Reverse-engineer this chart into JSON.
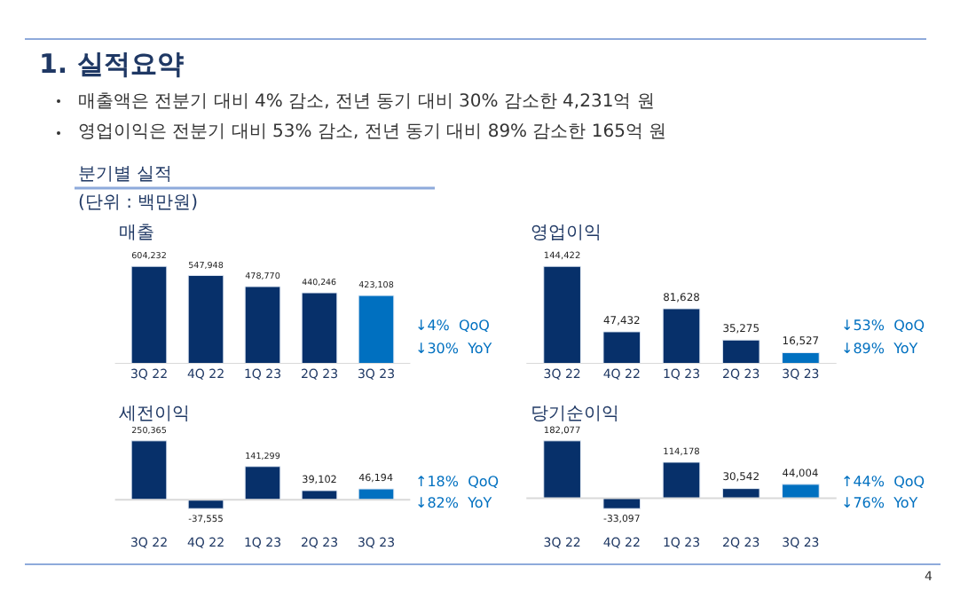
{
  "chart_data": [
    {
      "type": "bar",
      "title": "매출",
      "categories": [
        "3Q 22",
        "4Q 22",
        "1Q 23",
        "2Q 23",
        "3Q 23"
      ],
      "values": [
        604232,
        547948,
        478770,
        440246,
        423108
      ],
      "value_labels": [
        "604,232",
        "547,948",
        "478,770",
        "440,246",
        "423,108"
      ],
      "colors": [
        "#07306a",
        "#07306a",
        "#07306a",
        "#07306a",
        "#0070c0"
      ],
      "annotations": [
        "1. 실적요약",
        "매출액은 전분기 대비 4% 감소, 전년 동기 대비 30% 감소한 4,231억 원",
        "영업이익은 전분기 대비 53% 감소, 전년 동기 대비 89% 감소한 165억 원",
        "분기별 실적",
        "(단위 : 백만원)",
        "↓4%  QoQ",
        "↓30%  YoY"
      ]
    },
    {
      "type": "bar",
      "title": "영업이익",
      "categories": [
        "3Q 22",
        "4Q 22",
        "1Q 23",
        "2Q 23",
        "3Q 23"
      ],
      "values": [
        144422,
        47432,
        81628,
        35275,
        16527
      ],
      "value_labels": [
        "144,422",
        "47,432",
        "81,628",
        "35,275",
        "16,527"
      ],
      "colors": [
        "#07306a",
        "#07306a",
        "#07306a",
        "#07306a",
        "#0070c0"
      ],
      "annotations": [
        "↓53%  QoQ",
        "↓89%  YoY"
      ]
    },
    {
      "type": "bar",
      "title": "세전이익",
      "categories": [
        "3Q 22",
        "4Q 22",
        "1Q 23",
        "2Q 23",
        "3Q 23"
      ],
      "values": [
        250365,
        -37555,
        141299,
        39102,
        46194
      ],
      "value_labels": [
        "250,365",
        "-37,555",
        "141,299",
        "39,102",
        "46,194"
      ],
      "colors": [
        "#07306a",
        "#07306a",
        "#07306a",
        "#07306a",
        "#0070c0"
      ],
      "annotations": [
        "↑18%  QoQ",
        "↓82%  YoY"
      ]
    },
    {
      "type": "bar",
      "title": "당기순이익",
      "categories": [
        "3Q 22",
        "4Q 22",
        "1Q 23",
        "2Q 23",
        "3Q 23"
      ],
      "values": [
        182077,
        -33097,
        114178,
        30542,
        44004
      ],
      "value_labels": [
        "182,077",
        "-33,097",
        "114,178",
        "30,542",
        "44,004"
      ],
      "colors": [
        "#07306a",
        "#07306a",
        "#07306a",
        "#07306a",
        "#0070c0"
      ],
      "annotations": [
        "↑44%  QoQ",
        "↓76%  YoY",
        "4"
      ]
    }
  ]
}
